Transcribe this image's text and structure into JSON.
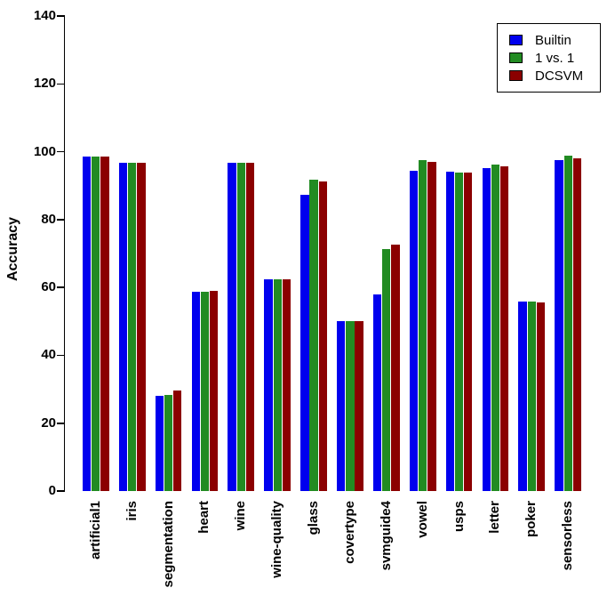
{
  "chart_data": {
    "type": "bar",
    "title": "",
    "ylabel": "Accuracy",
    "xlabel": "",
    "ylim": [
      0,
      140
    ],
    "yticks": [
      0,
      20,
      40,
      60,
      80,
      100,
      120,
      140
    ],
    "grid": false,
    "legend_position": "top-right",
    "categories": [
      "artificial1",
      "iris",
      "segmentation",
      "heart",
      "wine",
      "wine-quality",
      "glass",
      "covertype",
      "svmguide4",
      "vowel",
      "usps",
      "letter",
      "poker",
      "sensorless"
    ],
    "series": [
      {
        "name": "Builtin",
        "color": "#0000EE",
        "values": [
          98.6,
          96.8,
          28.0,
          58.8,
          96.8,
          62.5,
          87.4,
          50.2,
          58.0,
          94.3,
          94.2,
          95.2,
          55.8,
          97.6
        ]
      },
      {
        "name": "1 vs. 1",
        "color": "#228B22",
        "values": [
          98.6,
          96.8,
          28.2,
          58.8,
          96.8,
          62.5,
          91.8,
          50.1,
          71.2,
          97.4,
          93.9,
          96.3,
          55.8,
          98.9
        ]
      },
      {
        "name": "DCSVM",
        "color": "#8B0000",
        "values": [
          98.6,
          96.8,
          29.6,
          59.1,
          96.8,
          62.5,
          91.3,
          50.1,
          72.6,
          97.0,
          93.9,
          95.6,
          55.5,
          98.1
        ]
      }
    ]
  }
}
